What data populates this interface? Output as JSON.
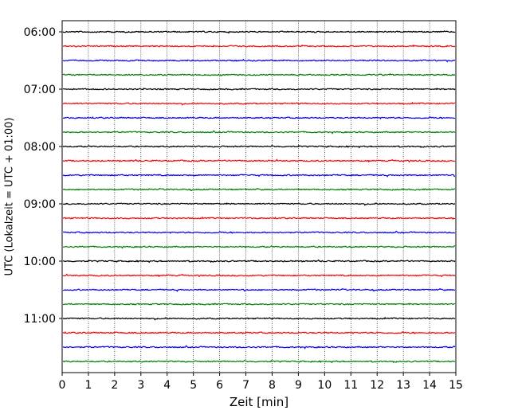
{
  "chart_data": {
    "type": "line",
    "title": "",
    "xlabel": "Zeit  [min]",
    "ylabel": "UTC (Lokalzeit = UTC + 01:00)",
    "xlim": [
      0,
      15
    ],
    "x_ticks": [
      "0",
      "1",
      "2",
      "3",
      "4",
      "5",
      "6",
      "7",
      "8",
      "9",
      "10",
      "11",
      "12",
      "13",
      "14",
      "15"
    ],
    "y_tick_labels": [
      "06:00",
      "07:00",
      "08:00",
      "09:00",
      "10:00",
      "11:00"
    ],
    "grid": {
      "x": true,
      "y": false,
      "style": "dotted"
    },
    "trace_interval_minutes": 15,
    "trace_colors_cycle": [
      "#000000",
      "#ff0000",
      "#0000ff",
      "#008000"
    ],
    "trace_start_times": [
      "06:00",
      "06:15",
      "06:30",
      "06:45",
      "07:00",
      "07:15",
      "07:30",
      "07:45",
      "08:00",
      "08:15",
      "08:30",
      "08:45",
      "09:00",
      "09:15",
      "09:30",
      "09:45",
      "10:00",
      "10:15",
      "10:30",
      "10:45",
      "11:00",
      "11:15",
      "11:30",
      "11:45"
    ]
  }
}
